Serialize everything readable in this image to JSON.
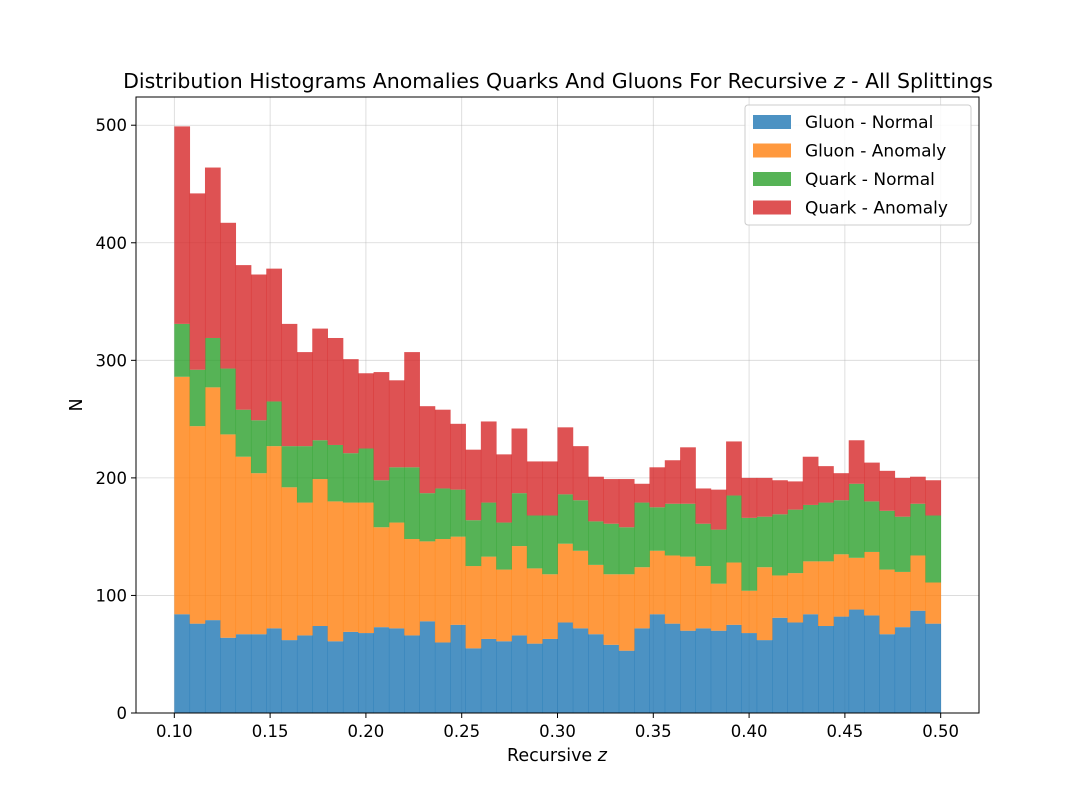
{
  "chart_data": {
    "type": "bar",
    "stacked": true,
    "histogram": true,
    "title_pre": "Distribution Histograms Anomalies Quarks And Gluons For Recursive ",
    "title_var": "z",
    "title_post": " - All Splittings",
    "xlabel_pre": "Recursive ",
    "xlabel_var": "z",
    "ylabel": "N",
    "xlim": [
      0.08,
      0.52
    ],
    "ylim": [
      0,
      524
    ],
    "x_ticks": [
      {
        "value": 0.1,
        "label": "0.10"
      },
      {
        "value": 0.15,
        "label": "0.15"
      },
      {
        "value": 0.2,
        "label": "0.20"
      },
      {
        "value": 0.25,
        "label": "0.25"
      },
      {
        "value": 0.3,
        "label": "0.30"
      },
      {
        "value": 0.35,
        "label": "0.35"
      },
      {
        "value": 0.4,
        "label": "0.40"
      },
      {
        "value": 0.45,
        "label": "0.45"
      },
      {
        "value": 0.5,
        "label": "0.50"
      }
    ],
    "y_ticks": [
      {
        "value": 0,
        "label": "0"
      },
      {
        "value": 100,
        "label": "100"
      },
      {
        "value": 200,
        "label": "200"
      },
      {
        "value": 300,
        "label": "300"
      },
      {
        "value": 400,
        "label": "400"
      },
      {
        "value": 500,
        "label": "500"
      }
    ],
    "grid": true,
    "legend_position": "top-right",
    "bins": {
      "start": 0.1,
      "end": 0.5,
      "count": 50
    },
    "series": [
      {
        "name": "Gluon - Normal",
        "color": "#1f77b4",
        "values": [
          84,
          76,
          79,
          64,
          67,
          67,
          72,
          62,
          66,
          74,
          61,
          69,
          68,
          73,
          72,
          66,
          78,
          60,
          75,
          55,
          63,
          61,
          66,
          59,
          63,
          77,
          72,
          67,
          58,
          53,
          72,
          84,
          76,
          70,
          72,
          70,
          75,
          68,
          62,
          81,
          77,
          84,
          74,
          82,
          88,
          83,
          67,
          73,
          87,
          76
        ]
      },
      {
        "name": "Gluon - Anomaly",
        "color": "#ff7f0e",
        "values": [
          202,
          168,
          198,
          173,
          151,
          137,
          155,
          130,
          113,
          125,
          119,
          110,
          111,
          85,
          90,
          82,
          68,
          88,
          75,
          70,
          70,
          61,
          76,
          64,
          55,
          67,
          66,
          59,
          60,
          65,
          52,
          54,
          58,
          63,
          53,
          40,
          53,
          36,
          62,
          36,
          42,
          45,
          55,
          53,
          44,
          54,
          55,
          47,
          47,
          35
        ]
      },
      {
        "name": "Quark - Normal",
        "color": "#2ca02c",
        "values": [
          45,
          48,
          42,
          56,
          40,
          45,
          38,
          35,
          48,
          33,
          48,
          42,
          46,
          40,
          47,
          61,
          41,
          43,
          40,
          39,
          46,
          40,
          45,
          45,
          50,
          42,
          43,
          37,
          43,
          40,
          55,
          37,
          44,
          45,
          36,
          46,
          57,
          62,
          43,
          52,
          54,
          48,
          50,
          46,
          63,
          43,
          50,
          47,
          44,
          57
        ]
      },
      {
        "name": "Quark - Anomaly",
        "color": "#d62728",
        "values": [
          168,
          150,
          145,
          124,
          123,
          124,
          113,
          104,
          80,
          95,
          91,
          80,
          64,
          92,
          74,
          98,
          74,
          67,
          56,
          60,
          69,
          58,
          55,
          46,
          46,
          57,
          46,
          38,
          38,
          41,
          16,
          34,
          37,
          48,
          30,
          34,
          46,
          34,
          33,
          29,
          24,
          41,
          31,
          23,
          37,
          33,
          34,
          33,
          23,
          30
        ]
      }
    ]
  }
}
